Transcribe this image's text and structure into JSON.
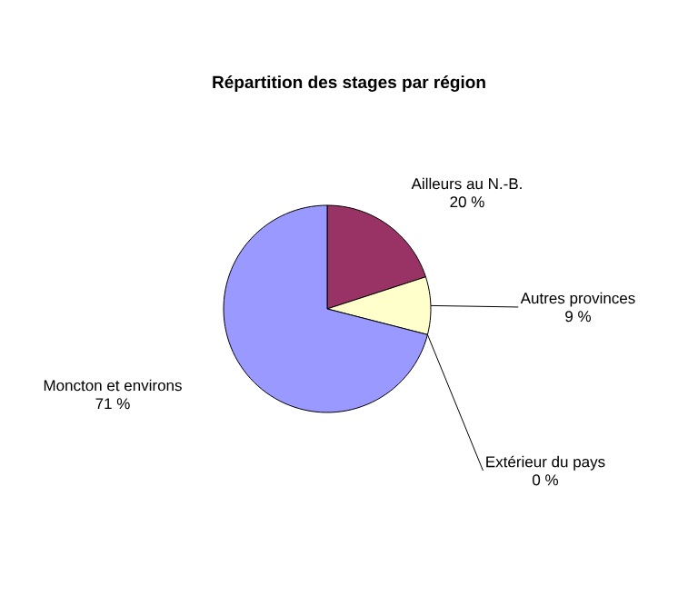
{
  "chart_data": {
    "type": "pie",
    "title": "Répartition des stages par région",
    "categories": [
      "Ailleurs au N.-B.",
      "Autres provinces",
      "Extérieur du pays",
      "Moncton et environs"
    ],
    "values": [
      20,
      9,
      0,
      71
    ],
    "value_labels": [
      "20 %",
      "9 %",
      "0 %",
      "71 %"
    ],
    "colors": [
      "#993366",
      "#ffffcc",
      "#ccffff",
      "#9999ff"
    ]
  }
}
